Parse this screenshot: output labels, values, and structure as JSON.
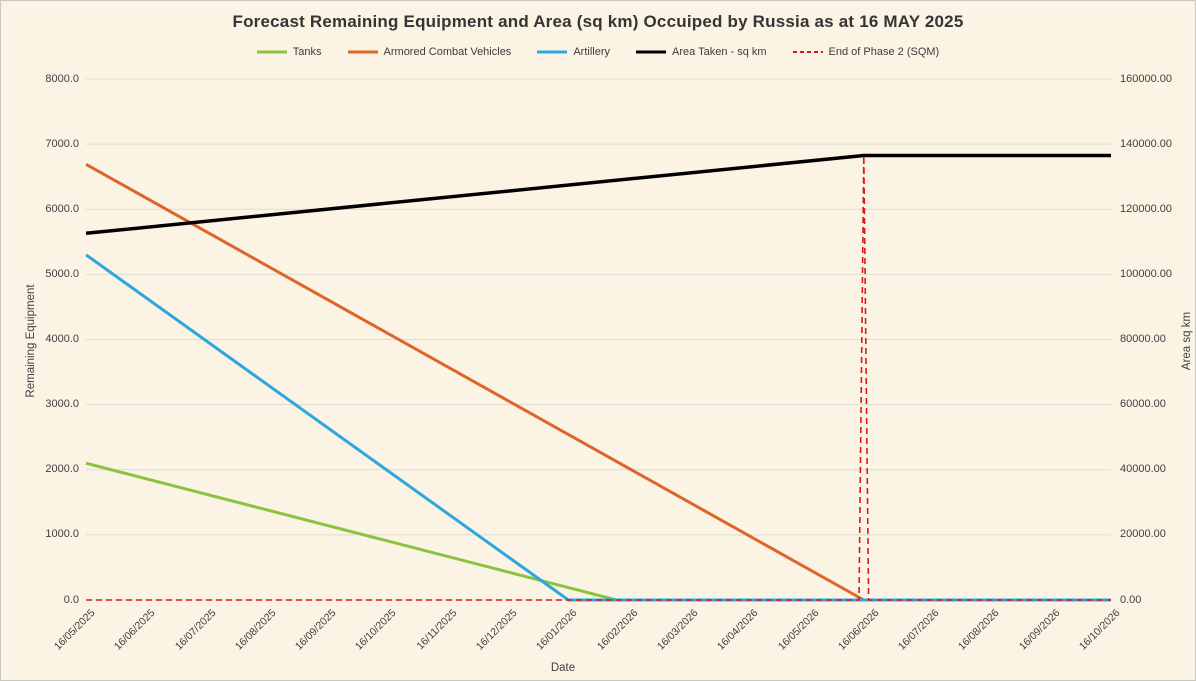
{
  "page": {
    "background_color": "#FBF4E4",
    "border_color": "#C9C6BC",
    "text_color": "#3F3F3F"
  },
  "chart_data": {
    "type": "line",
    "title": "Forecast Remaining Equipment and Area (sq km) Occuiped by Russia as at 16 MAY 2025",
    "x_unit": "month index from 16/05/2025 (one unit = one month, fractional = part month)",
    "x_axis": {
      "label": "Date",
      "categories": [
        "16/05/2025",
        "16/06/2025",
        "16/07/2025",
        "16/08/2025",
        "16/09/2025",
        "16/10/2025",
        "16/11/2025",
        "16/12/2025",
        "16/01/2026",
        "16/02/2026",
        "16/03/2026",
        "16/04/2026",
        "16/05/2026",
        "16/06/2026",
        "16/07/2026",
        "16/08/2026",
        "16/09/2026",
        "16/10/2026"
      ]
    },
    "y_axis_left": {
      "label": "Remaining Equipment",
      "min": 0,
      "max": 8000,
      "step": 1000,
      "tick_labels": [
        "0.0",
        "1000.0",
        "2000.0",
        "3000.0",
        "4000.0",
        "5000.0",
        "6000.0",
        "7000.0",
        "8000.0"
      ]
    },
    "y_axis_right": {
      "label": "Area  sq km",
      "min": 0,
      "max": 160000,
      "step": 20000,
      "tick_labels": [
        "0.00",
        "20000.00",
        "40000.00",
        "60000.00",
        "80000.00",
        "100000.00",
        "120000.00",
        "140000.00",
        "160000.00"
      ]
    },
    "grid": {
      "horizontal": true,
      "vertical": false,
      "color": "#DEDBD1"
    },
    "legend_position": "top",
    "series": [
      {
        "name": "Tanks",
        "color": "#8CC23E",
        "axis": "left",
        "line_style": "solid",
        "line_width": 3,
        "start_value": 2100,
        "zero_date": "~10/02/2026",
        "points": [
          [
            0,
            2100
          ],
          [
            8.8,
            0
          ],
          [
            17,
            0
          ]
        ]
      },
      {
        "name": "Armored Combat Vehicles",
        "color": "#DD6529",
        "axis": "left",
        "line_style": "solid",
        "line_width": 3,
        "start_value": 6690,
        "zero_date": "~11/06/2026",
        "points": [
          [
            0,
            6690
          ],
          [
            12.9,
            0
          ],
          [
            17,
            0
          ]
        ]
      },
      {
        "name": "Artillery",
        "color": "#2FA6DE",
        "axis": "left",
        "line_style": "solid",
        "line_width": 3,
        "start_value": 5300,
        "zero_date": "16/01/2026",
        "points": [
          [
            0,
            5300
          ],
          [
            8,
            0
          ],
          [
            17,
            0
          ]
        ]
      },
      {
        "name": "Area Taken - sq km",
        "color": "#000000",
        "axis": "right",
        "line_style": "solid",
        "line_width": 3.5,
        "start_value": 112600,
        "plateau_value": 136500,
        "plateau_date": "~11/06/2026",
        "points": [
          [
            0,
            112600
          ],
          [
            12.9,
            136500
          ],
          [
            17,
            136500
          ]
        ]
      },
      {
        "name": "End of Phase 2 (SQM)",
        "color": "#E01717",
        "axis": "right",
        "line_style": "dashed",
        "line_width": 1.6,
        "baseline_value": 0,
        "spike_value": 136500,
        "spike_date": "~11/06/2026",
        "points": [
          [
            0,
            0
          ],
          [
            12.82,
            0
          ],
          [
            12.9,
            136500
          ],
          [
            12.98,
            0
          ],
          [
            17,
            0
          ]
        ]
      }
    ]
  }
}
